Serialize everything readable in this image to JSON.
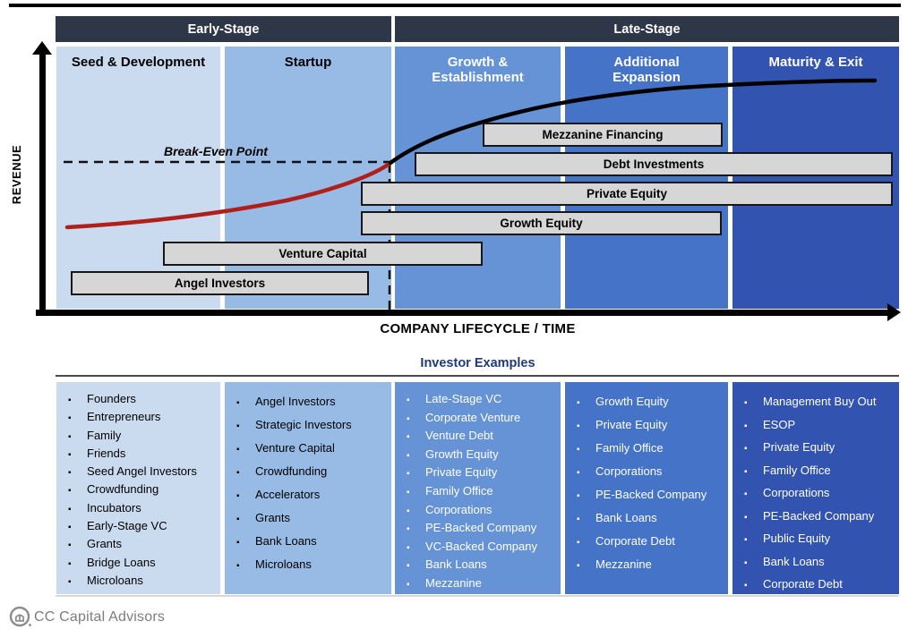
{
  "stage_headers": [
    {
      "label": "Early-Stage"
    },
    {
      "label": "Late-Stage"
    }
  ],
  "axes": {
    "y_label": "REVENUE",
    "x_label": "COMPANY LIFECYCLE / TIME"
  },
  "break_even_label": "Break-Even Point",
  "columns": [
    {
      "label": "Seed & Development",
      "color": "#cadbf0",
      "text_color": "#000000",
      "investors": [
        "Founders",
        "Entrepreneurs",
        "Family",
        "Friends",
        "Seed Angel Investors",
        "Crowdfunding",
        "Incubators",
        "Early-Stage VC",
        "Grants",
        "Bridge Loans",
        "Microloans"
      ]
    },
    {
      "label": "Startup",
      "color": "#97bbe5",
      "text_color": "#000000",
      "investors": [
        "Angel Investors",
        "Strategic Investors",
        "Venture Capital",
        "Crowdfunding",
        "Accelerators",
        "Grants",
        "Bank Loans",
        "Microloans"
      ]
    },
    {
      "label": "Growth &\nEstablishment",
      "color": "#6593d6",
      "text_color": "#ffffff",
      "investors": [
        "Late-Stage VC",
        "Corporate Venture",
        "Venture Debt",
        "Growth Equity",
        "Private Equity",
        "Family Office",
        "Corporations",
        "PE-Backed Company",
        "VC-Backed Company",
        "Bank Loans",
        "Mezzanine"
      ]
    },
    {
      "label": "Additional\nExpansion",
      "color": "#4473c8",
      "text_color": "#ffffff",
      "investors": [
        "Growth Equity",
        "Private Equity",
        "Family Office",
        "Corporations",
        "PE-Backed Company",
        "Bank Loans",
        "Corporate Debt",
        "Mezzanine"
      ]
    },
    {
      "label": "Maturity & Exit",
      "color": "#3254b0",
      "text_color": "#ffffff",
      "investors": [
        "Management Buy Out",
        "ESOP",
        "Private Equity",
        "Family Office",
        "Corporations",
        "PE-Backed Company",
        "Public Equity",
        "Bank Loans",
        "Corporate Debt"
      ]
    }
  ],
  "financing_bars": [
    {
      "label": "Mezzanine Financing"
    },
    {
      "label": "Debt Investments"
    },
    {
      "label": "Private Equity"
    },
    {
      "label": "Growth Equity"
    },
    {
      "label": "Venture Capital"
    },
    {
      "label": "Angel Investors"
    }
  ],
  "investor_examples_title": "Investor Examples",
  "footer": {
    "brand": "CC Capital Advisors"
  },
  "colors": {
    "stage_header_bg": "#2e3748",
    "bar_fill": "#d6d6d6",
    "bar_border": "#171717",
    "curve_pre_breakeven": "#b01f1a",
    "curve_post_breakeven": "#000000",
    "title_navy": "#1e3a7a",
    "brand_gray": "#7d7d7d"
  }
}
